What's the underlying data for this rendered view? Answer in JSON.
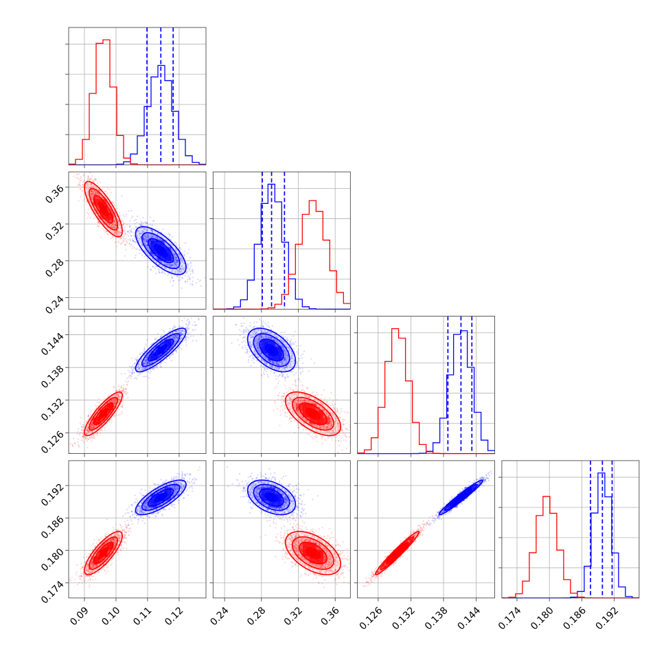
{
  "chart_data": {
    "type": "corner",
    "title": "",
    "grid": true,
    "colors": {
      "series_a": "#0000ff",
      "series_b": "#ff0000"
    },
    "parameters": [
      {
        "index": 0,
        "range": [
          0.085,
          0.1285
        ],
        "ticks": [
          0.09,
          0.1,
          0.11,
          0.12
        ],
        "tick_labels": [
          "0.09",
          "0.10",
          "0.11",
          "0.12"
        ]
      },
      {
        "index": 1,
        "range": [
          0.2275,
          0.3765
        ],
        "ticks": [
          0.24,
          0.28,
          0.32,
          0.36
        ],
        "tick_labels": [
          "0.24",
          "0.28",
          "0.32",
          "0.36"
        ]
      },
      {
        "index": 2,
        "range": [
          0.1222,
          0.1474
        ],
        "ticks": [
          0.126,
          0.132,
          0.138,
          0.144
        ],
        "tick_labels": [
          "0.126",
          "0.132",
          "0.138",
          "0.144"
        ]
      },
      {
        "index": 3,
        "range": [
          0.1712,
          0.1966
        ],
        "ticks": [
          0.174,
          0.18,
          0.186,
          0.192
        ],
        "tick_labels": [
          "0.174",
          "0.180",
          "0.186",
          "0.192"
        ]
      }
    ],
    "series": [
      {
        "color": "#0000ff",
        "mean": [
          0.1142,
          0.291,
          0.1412,
          0.1898
        ],
        "sd": [
          0.004,
          0.013,
          0.002,
          0.0016
        ],
        "corr": [
          [
            1,
            -0.7,
            0.85,
            0.75
          ],
          [
            -0.7,
            1,
            -0.5,
            -0.4
          ],
          [
            0.85,
            -0.5,
            1,
            0.97
          ],
          [
            0.75,
            -0.4,
            0.97,
            1
          ]
        ],
        "quantiles": [
          [
            0.1098,
            0.1142,
            0.1181
          ],
          [
            0.281,
            0.291,
            0.305
          ],
          [
            0.1388,
            0.1412,
            0.1432
          ],
          [
            0.1876,
            0.1898,
            0.1916
          ]
        ]
      },
      {
        "color": "#ff0000",
        "mean": [
          0.096,
          0.336,
          0.1295,
          0.1795
        ],
        "sd": [
          0.003,
          0.015,
          0.002,
          0.002
        ],
        "corr": [
          [
            1,
            -0.8,
            0.85,
            0.8
          ],
          [
            -0.8,
            1,
            -0.6,
            -0.5
          ],
          [
            0.85,
            -0.6,
            1,
            0.97
          ],
          [
            0.8,
            -0.5,
            0.97,
            1
          ]
        ],
        "quantiles": null
      }
    ]
  }
}
